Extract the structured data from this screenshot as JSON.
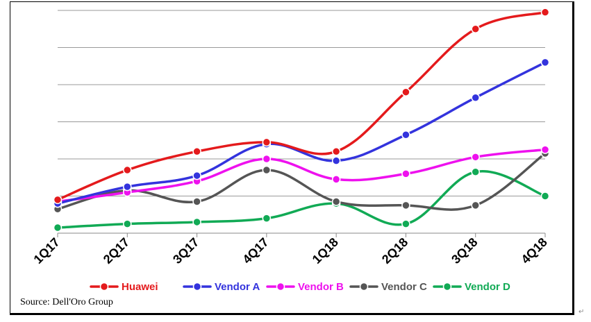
{
  "chart_data": {
    "type": "line",
    "categories": [
      "1Q17",
      "2Q17",
      "3Q17",
      "4Q17",
      "1Q18",
      "2Q18",
      "3Q18",
      "4Q18"
    ],
    "ylim": [
      0,
      6
    ],
    "grid": true,
    "legend_position": "bottom",
    "series": [
      {
        "name": "Huawei",
        "color": "#e41a1c",
        "values": [
          0.9,
          1.7,
          2.2,
          2.45,
          2.2,
          3.8,
          5.5,
          5.95
        ]
      },
      {
        "name": "Vendor A",
        "color": "#3333dd",
        "values": [
          0.8,
          1.25,
          1.55,
          2.4,
          1.95,
          2.65,
          3.65,
          4.6
        ]
      },
      {
        "name": "Vendor B",
        "color": "#ee11ee",
        "values": [
          0.85,
          1.1,
          1.4,
          2.0,
          1.45,
          1.6,
          2.05,
          2.25
        ]
      },
      {
        "name": "Vendor C",
        "color": "#555555",
        "values": [
          0.65,
          1.15,
          0.85,
          1.7,
          0.85,
          0.75,
          0.75,
          2.15
        ]
      },
      {
        "name": "Vendor D",
        "color": "#11aa55",
        "values": [
          0.15,
          0.25,
          0.3,
          0.4,
          0.8,
          0.25,
          1.65,
          1.0
        ]
      }
    ]
  },
  "source": "Source: Dell'Oro Group",
  "pilcrow": "↵"
}
